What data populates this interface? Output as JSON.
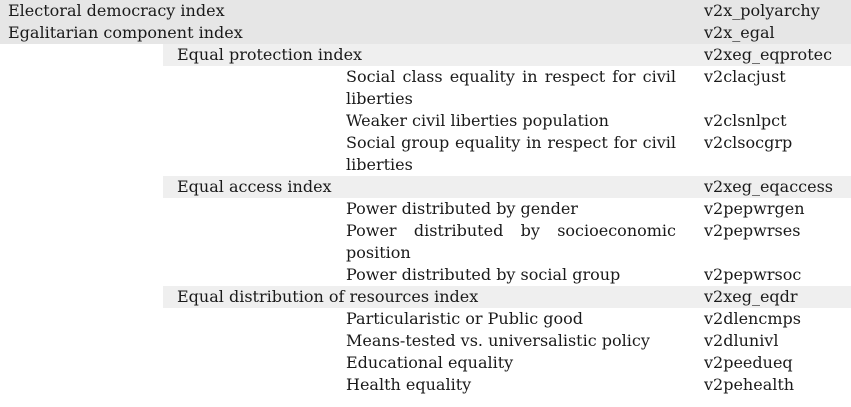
{
  "table": {
    "rows": [
      {
        "level": 0,
        "label": "Electoral democracy index",
        "code": "v2x_polyarchy"
      },
      {
        "level": 0,
        "label": "Egalitarian component index",
        "code": "v2x_egal"
      },
      {
        "level": 1,
        "label": "Equal protection index",
        "code": "v2xeg_eqprotec"
      },
      {
        "level": 2,
        "label": "Social class equality in respect for civil liberties",
        "code": "v2clacjust"
      },
      {
        "level": 2,
        "label": "Weaker civil liberties population",
        "code": "v2clsnlpct"
      },
      {
        "level": 2,
        "label": "Social group equality in respect for civil liberties",
        "code": "v2clsocgrp"
      },
      {
        "level": 1,
        "label": "Equal access index",
        "code": "v2xeg_eqaccess"
      },
      {
        "level": 2,
        "label": "Power distributed by gender",
        "code": "v2pepwrgen"
      },
      {
        "level": 2,
        "label": "Power distributed by socioeconomic position",
        "code": "v2pepwrses"
      },
      {
        "level": 2,
        "label": "Power distributed by social group",
        "code": "v2pepwrsoc"
      },
      {
        "level": 1,
        "label": "Equal distribution of resources index",
        "code": "v2xeg_eqdr"
      },
      {
        "level": 2,
        "label": "Particularistic or Public good",
        "code": "v2dlencmps"
      },
      {
        "level": 2,
        "label": "Means-tested vs. universalistic policy",
        "code": "v2dlunivl"
      },
      {
        "level": 2,
        "label": "Educational equality",
        "code": "v2peedueq"
      },
      {
        "level": 2,
        "label": "Health equality",
        "code": "v2pehealth"
      }
    ]
  }
}
